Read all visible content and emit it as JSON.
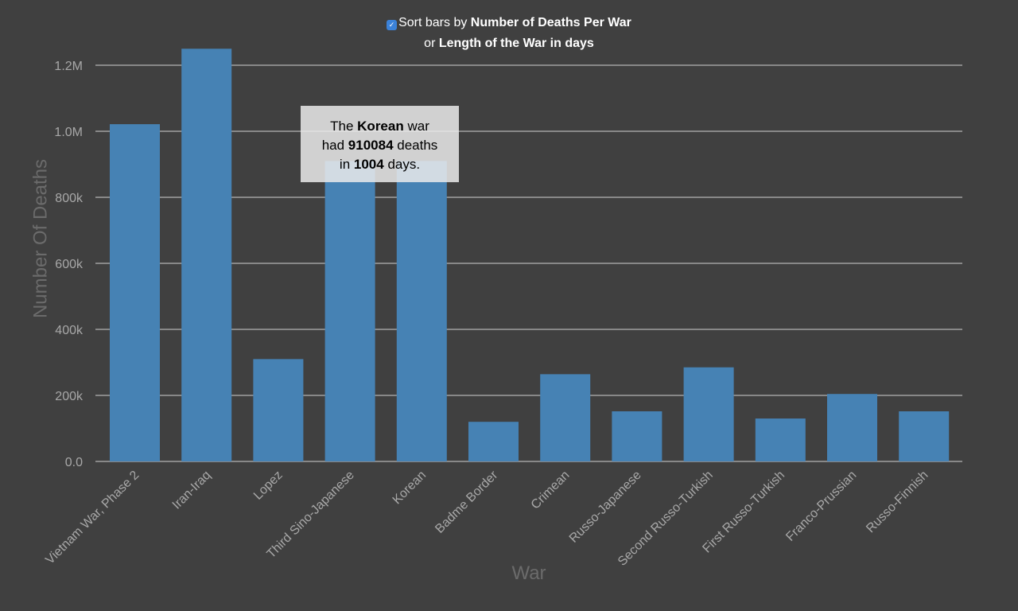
{
  "controls": {
    "checkbox_checked": true,
    "checkbox_mark": "✓",
    "line1_prefix": "Sort bars by ",
    "line1_bold": "Number of Deaths Per War",
    "line2_prefix": "or ",
    "line2_bold": "Length of the War in days"
  },
  "tooltip": {
    "p1": "The ",
    "war": "Korean",
    "p2": " war",
    "p3": "had ",
    "deaths": "910084",
    "p4": " deaths",
    "p5": "in ",
    "days": "1004",
    "p6": " days."
  },
  "colors": {
    "background": "#404040",
    "bar": "#4682b4",
    "grid": "#d0d0d0",
    "tick_text": "#a8a8a8",
    "axis_title": "#6b6b6b"
  },
  "chart_data": {
    "type": "bar",
    "xlabel": "War",
    "ylabel": "Number Of Deaths",
    "ylim": [
      0,
      1200000
    ],
    "yticks": [
      0,
      200000,
      400000,
      600000,
      800000,
      1000000,
      1200000
    ],
    "ytick_labels": [
      "0.0",
      "200k",
      "400k",
      "600k",
      "800k",
      "1.0M",
      "1.2M"
    ],
    "grid": true,
    "categories": [
      "Vietnam War, Phase 2",
      "Iran-Iraq",
      "Lopez",
      "Third Sino-Japanese",
      "Korean",
      "Badme Border",
      "Crimean",
      "Russo-Japanese",
      "Second Russo-Turkish",
      "First Russo-Turkish",
      "Franco-Prussian",
      "Russo-Finnish"
    ],
    "values": [
      1021442,
      1250000,
      310000,
      910000,
      910084,
      120000,
      264200,
      151831,
      285000,
      130000,
      204313,
      151798
    ]
  }
}
